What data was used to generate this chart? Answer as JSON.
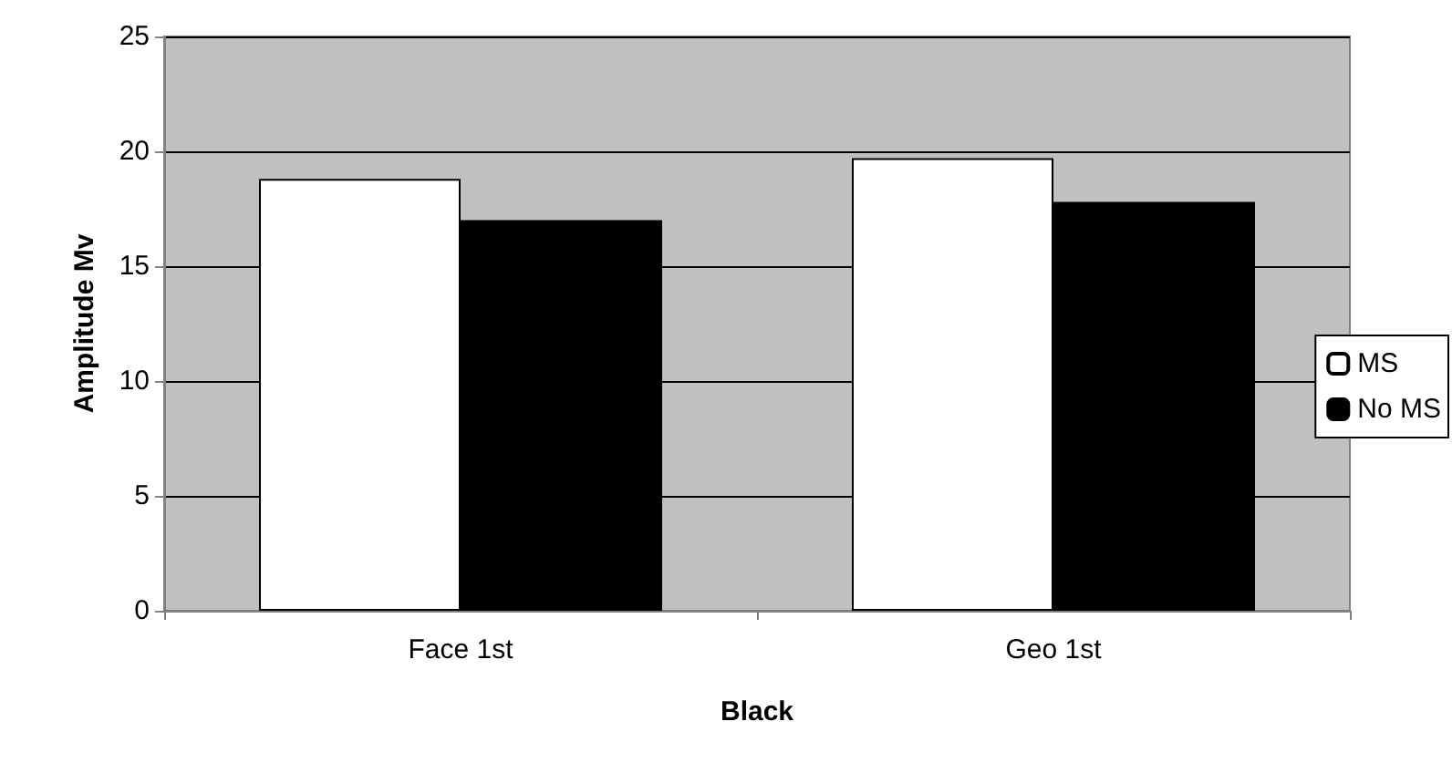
{
  "chart_data": {
    "type": "bar",
    "xlabel": "Black",
    "ylabel": "Amplitude Mv",
    "categories": [
      "Face 1st",
      "Geo 1st"
    ],
    "series": [
      {
        "name": "MS",
        "color": "#ffffff",
        "values": [
          18.8,
          19.7
        ]
      },
      {
        "name": "No MS",
        "color": "#000000",
        "values": [
          17.0,
          17.8
        ]
      }
    ],
    "ylim": [
      0,
      25
    ],
    "yticks": [
      0,
      5,
      10,
      15,
      20,
      25
    ],
    "grid": "y",
    "legend": "right"
  }
}
